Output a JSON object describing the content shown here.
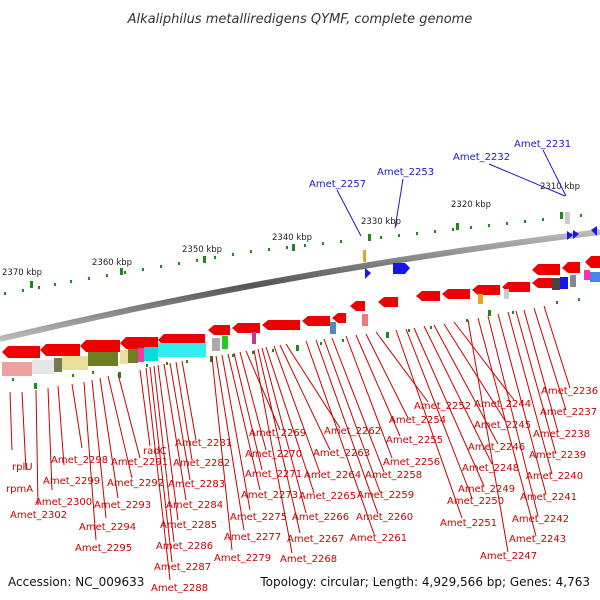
{
  "title": "Alkaliphilus metalliredigens QYMF, complete genome",
  "footer": {
    "accession": "Accession: NC_009633",
    "topology": "Topology: circular; Length: 4,929,566 bp; Genes: 4,763"
  },
  "ticks": [
    "2370 kbp",
    "2360 kbp",
    "2350 kbp",
    "2340 kbp",
    "2330 kbp",
    "2320 kbp",
    "2310 kbp"
  ],
  "blue_labels": [
    "Amet_2257",
    "Amet_2253",
    "Amet_2232",
    "Amet_2231"
  ],
  "red_labels": [
    "rplU",
    "rpmA",
    "Amet_2302",
    "Amet_2300",
    "Amet_2299",
    "Amet_2298",
    "Amet_2295",
    "Amet_2294",
    "Amet_2293",
    "Amet_2292",
    "Amet_2291",
    "radC",
    "Amet_2288",
    "Amet_2287",
    "Amet_2286",
    "Amet_2285",
    "Amet_2284",
    "Amet_2283",
    "Amet_2282",
    "Amet_2281",
    "Amet_2279",
    "Amet_2277",
    "Amet_2275",
    "Amet_2273",
    "Amet_2271",
    "Amet_2270",
    "Amet_2269",
    "Amet_2268",
    "Amet_2267",
    "Amet_2266",
    "Amet_2265",
    "Amet_2264",
    "Amet_2263",
    "Amet_2262",
    "Amet_2261",
    "Amet_2260",
    "Amet_2259",
    "Amet_2258",
    "Amet_2256",
    "Amet_2255",
    "Amet_2254",
    "Amet_2252",
    "Amet_2251",
    "Amet_2250",
    "Amet_2249",
    "Amet_2248",
    "Amet_2246",
    "Amet_2245",
    "Amet_2244",
    "Amet_2247",
    "Amet_2243",
    "Amet_2242",
    "Amet_2241",
    "Amet_2240",
    "Amet_2239",
    "Amet_2238",
    "Amet_2237",
    "Amet_2236"
  ],
  "colors": {
    "gene": "#ee0000",
    "label_blue": "#1a1acc",
    "label_red": "#cc0000",
    "tick": "#1e8a1e",
    "backbone": "#888888"
  }
}
